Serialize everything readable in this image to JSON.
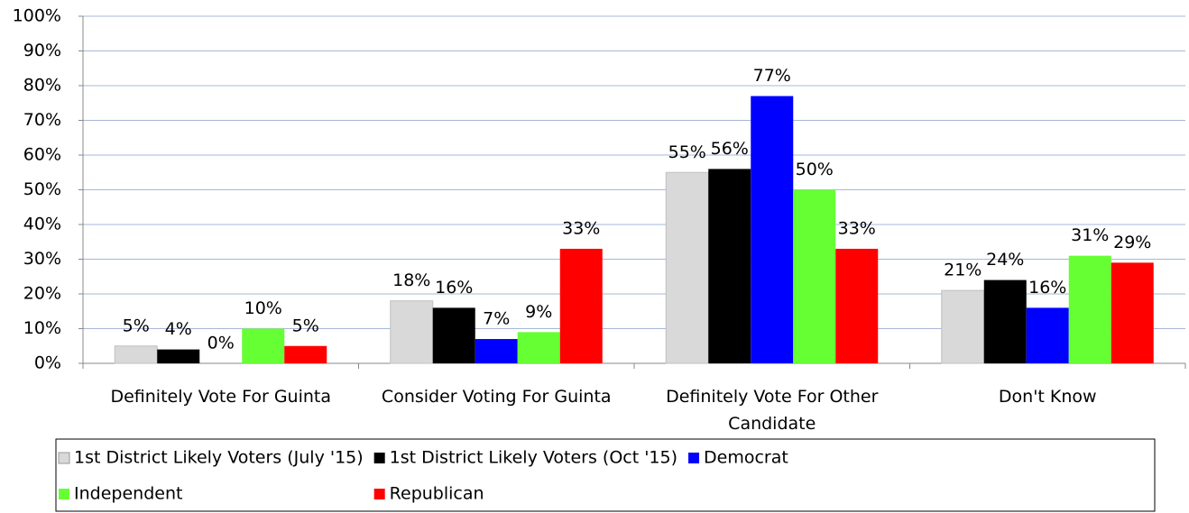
{
  "chart_data": {
    "type": "bar",
    "categories": [
      "Definitely Vote For Guinta",
      "Consider Voting For Guinta",
      "Definitely Vote For Other Candidate",
      "Don't Know"
    ],
    "series": [
      {
        "name": "1st District Likely Voters (July '15)",
        "color": "#d9d9d9",
        "values": [
          5,
          18,
          55,
          21
        ],
        "value_labels": [
          "5%",
          "18%",
          "55%",
          "21%"
        ]
      },
      {
        "name": "1st District Likely Voters (Oct '15)",
        "color": "#000000",
        "values": [
          4,
          16,
          56,
          24
        ],
        "value_labels": [
          "4%",
          "16%",
          "56%",
          "24%"
        ]
      },
      {
        "name": "Democrat",
        "color": "#0000ff",
        "values": [
          0,
          7,
          77,
          16
        ],
        "value_labels": [
          "0%",
          "7%",
          "77%",
          "16%"
        ]
      },
      {
        "name": "Independent",
        "color": "#66ff33",
        "values": [
          10,
          9,
          50,
          31
        ],
        "value_labels": [
          "10%",
          "9%",
          "50%",
          "31%"
        ]
      },
      {
        "name": "Republican",
        "color": "#ff0000",
        "values": [
          5,
          33,
          33,
          29
        ],
        "value_labels": [
          "5%",
          "33%",
          "33%",
          "29%"
        ]
      }
    ],
    "ylim": [
      0,
      100
    ],
    "yticks": [
      {
        "value": 0,
        "label": "0%"
      },
      {
        "value": 10,
        "label": "10%"
      },
      {
        "value": 20,
        "label": "20%"
      },
      {
        "value": 30,
        "label": "30%"
      },
      {
        "value": 40,
        "label": "40%"
      },
      {
        "value": 50,
        "label": "50%"
      },
      {
        "value": 60,
        "label": "60%"
      },
      {
        "value": 70,
        "label": "70%"
      },
      {
        "value": 80,
        "label": "80%"
      },
      {
        "value": 90,
        "label": "90%"
      },
      {
        "value": 100,
        "label": "100%"
      }
    ],
    "grid": true,
    "legend": "bottom"
  }
}
